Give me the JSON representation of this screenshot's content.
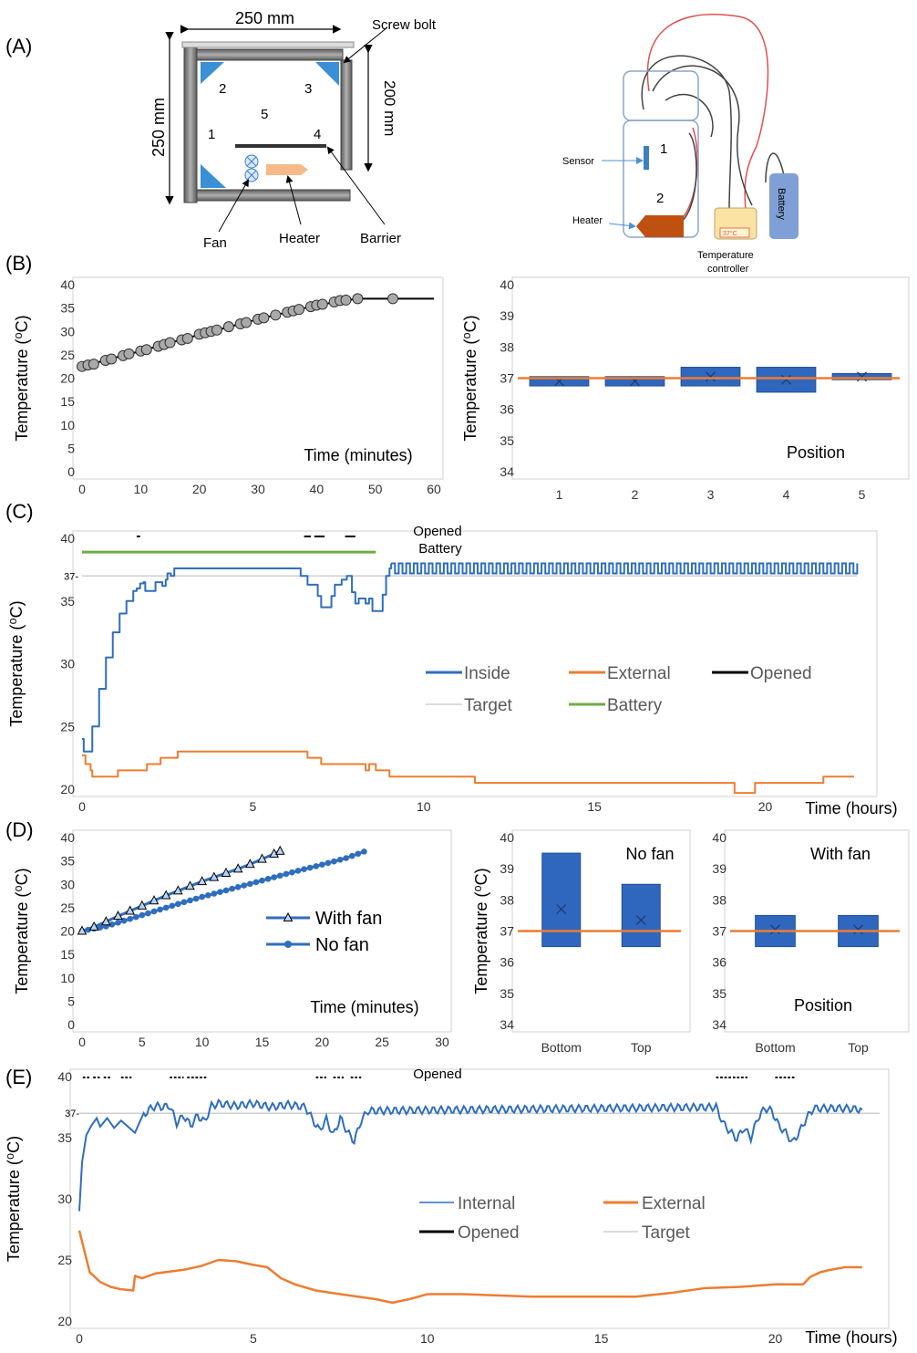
{
  "panels": {
    "a": "(A)",
    "b": "(B)",
    "c": "(C)",
    "d": "(D)",
    "e": "(E)"
  },
  "colors": {
    "blue": "#2f6ebd",
    "orange": "#ed7d31",
    "green": "#70ad47",
    "target": "#cfcfcf",
    "box": "#3067be",
    "marker": "#a9a9a9"
  },
  "diagram_a1": {
    "width_label": "250 mm",
    "height_label": "250 mm",
    "inner_height_label": "200 mm",
    "screw_bolt": "Screw bolt",
    "fan": "Fan",
    "heater": "Heater",
    "barrier": "Barrier",
    "positions": [
      "1",
      "2",
      "3",
      "4",
      "5"
    ]
  },
  "diagram_a2": {
    "sensor": "Sensor",
    "heater": "Heater",
    "controller_line1": "Temperature",
    "controller_line2": "controller",
    "battery": "Battery",
    "display": "37°C",
    "zone1": "1",
    "zone2": "2"
  },
  "chart_data": [
    {
      "id": "B-left",
      "type": "scatter",
      "xlabel": "Time (minutes)",
      "ylabel": "Temperature (⁰C)",
      "xlim": [
        0,
        60
      ],
      "ylim": [
        0,
        40
      ],
      "xticks": [
        0,
        10,
        20,
        30,
        40,
        50,
        60
      ],
      "yticks": [
        0,
        5,
        10,
        15,
        20,
        25,
        30,
        35,
        40
      ],
      "points": [
        [
          0,
          22.5
        ],
        [
          1,
          22.8
        ],
        [
          2,
          23
        ],
        [
          4,
          23.8
        ],
        [
          5,
          24.1
        ],
        [
          7,
          24.8
        ],
        [
          8,
          25.2
        ],
        [
          10,
          25.8
        ],
        [
          11,
          26.1
        ],
        [
          13,
          26.8
        ],
        [
          14,
          27.2
        ],
        [
          15,
          27.6
        ],
        [
          17,
          28.2
        ],
        [
          18,
          28.5
        ],
        [
          20,
          29.4
        ],
        [
          21,
          29.7
        ],
        [
          22,
          30
        ],
        [
          23,
          30.3
        ],
        [
          25,
          31
        ],
        [
          27,
          31.6
        ],
        [
          28,
          31.9
        ],
        [
          30,
          32.6
        ],
        [
          31,
          32.9
        ],
        [
          33,
          33.5
        ],
        [
          35,
          34.1
        ],
        [
          36,
          34.4
        ],
        [
          37,
          34.7
        ],
        [
          39,
          35.3
        ],
        [
          40,
          35.6
        ],
        [
          41,
          35.8
        ],
        [
          43,
          36.3
        ],
        [
          44,
          36.6
        ],
        [
          45,
          36.7
        ],
        [
          47,
          37
        ],
        [
          53,
          37
        ]
      ],
      "curve": [
        [
          0,
          22.5
        ],
        [
          10,
          25.8
        ],
        [
          20,
          29.3
        ],
        [
          30,
          32.6
        ],
        [
          40,
          35.6
        ],
        [
          47,
          37
        ],
        [
          60,
          37
        ]
      ]
    },
    {
      "id": "B-right",
      "type": "box",
      "xlabel": "Position",
      "ylabel": "Temperature (⁰C)",
      "ylim": [
        34,
        40
      ],
      "yticks": [
        34,
        35,
        36,
        37,
        38,
        39,
        40
      ],
      "categories": [
        "1",
        "2",
        "3",
        "4",
        "5"
      ],
      "boxes": [
        [
          36.75,
          37.05,
          36.9
        ],
        [
          36.75,
          37.05,
          36.9
        ],
        [
          36.75,
          37.35,
          37.05
        ],
        [
          36.55,
          37.35,
          36.95
        ],
        [
          36.95,
          37.15,
          37.05
        ]
      ],
      "target": 37
    },
    {
      "id": "C",
      "type": "line",
      "xlabel": "Time (hours)",
      "ylabel": "Temperature (⁰C)",
      "xlim": [
        0,
        23
      ],
      "ylim": [
        20,
        40
      ],
      "xticks": [
        0,
        5,
        10,
        15,
        20
      ],
      "yticks": [
        20,
        25,
        30,
        35,
        40
      ],
      "target_label": "37-",
      "target": 37,
      "annotation1": "Opened",
      "annotation2": "Battery",
      "battery": [
        [
          0,
          38.9
        ],
        [
          8.6,
          38.9
        ]
      ],
      "opened_segments": [
        [
          1.6,
          1.7
        ],
        [
          6.5,
          6.7
        ],
        [
          6.8,
          7.1
        ],
        [
          7.7,
          8.0
        ]
      ],
      "legend": [
        "Inside",
        "External",
        "Opened",
        "Target",
        "Battery"
      ],
      "inside": [
        [
          0,
          24
        ],
        [
          0.05,
          23
        ],
        [
          0.2,
          23
        ],
        [
          0.3,
          25
        ],
        [
          0.5,
          28
        ],
        [
          0.7,
          30.5
        ],
        [
          0.9,
          32.5
        ],
        [
          1.1,
          34
        ],
        [
          1.3,
          35
        ],
        [
          1.5,
          35.8
        ],
        [
          1.6,
          36
        ],
        [
          1.7,
          36.4
        ],
        [
          1.8,
          36.5
        ],
        [
          1.85,
          35.8
        ],
        [
          2.1,
          35.8
        ],
        [
          2.15,
          36.5
        ],
        [
          2.3,
          36.5
        ],
        [
          2.35,
          36.2
        ],
        [
          2.45,
          36.7
        ],
        [
          2.5,
          37.2
        ],
        [
          2.6,
          37
        ],
        [
          2.7,
          37.6
        ],
        [
          3,
          37.6
        ],
        [
          6.3,
          37.6
        ],
        [
          6.4,
          37
        ],
        [
          6.6,
          36.3
        ],
        [
          6.8,
          36.3
        ],
        [
          6.9,
          35.4
        ],
        [
          7,
          34.5
        ],
        [
          7.2,
          34.5
        ],
        [
          7.3,
          35.4
        ],
        [
          7.4,
          36.3
        ],
        [
          7.6,
          36.7
        ],
        [
          7.75,
          37
        ],
        [
          7.9,
          35.7
        ],
        [
          8,
          34.8
        ],
        [
          8.1,
          35.2
        ],
        [
          8.3,
          34.8
        ],
        [
          8.4,
          35.2
        ],
        [
          8.5,
          34.2
        ],
        [
          8.7,
          34.2
        ],
        [
          8.8,
          35.5
        ],
        [
          8.9,
          37
        ],
        [
          9,
          37.6
        ],
        [
          9.05,
          38
        ]
      ]
    },
    {
      "id": "D-left",
      "type": "line",
      "xlabel": "Time (minutes)",
      "ylabel": "Temperature (⁰C)",
      "xlim": [
        0,
        30
      ],
      "ylim": [
        0,
        40
      ],
      "xticks": [
        0,
        5,
        10,
        15,
        20,
        25,
        30
      ],
      "yticks": [
        0,
        5,
        10,
        15,
        20,
        25,
        30,
        35,
        40
      ],
      "series": [
        {
          "name": "With fan",
          "values": [
            [
              0,
              20
            ],
            [
              1,
              20.9
            ],
            [
              2,
              22
            ],
            [
              3,
              23.2
            ],
            [
              4,
              24.3
            ],
            [
              5,
              25.4
            ],
            [
              6,
              26.5
            ],
            [
              7,
              27.6
            ],
            [
              8,
              28.6
            ],
            [
              9,
              29.6
            ],
            [
              10,
              30.6
            ],
            [
              11,
              31.5
            ],
            [
              12,
              32.4
            ],
            [
              13,
              33.3
            ],
            [
              14,
              34.3
            ],
            [
              15,
              35.4
            ],
            [
              16,
              36.5
            ],
            [
              16.5,
              37.1
            ]
          ]
        },
        {
          "name": "No fan",
          "values": [
            [
              0,
              20
            ],
            [
              2,
              21
            ],
            [
              4,
              22.6
            ],
            [
              6,
              24.2
            ],
            [
              8,
              25.8
            ],
            [
              10,
              27.3
            ],
            [
              12,
              28.7
            ],
            [
              14,
              30.1
            ],
            [
              16,
              31.5
            ],
            [
              18,
              32.9
            ],
            [
              20,
              34.2
            ],
            [
              22,
              35.6
            ],
            [
              23.5,
              37
            ]
          ]
        }
      ]
    },
    {
      "id": "D-middle",
      "type": "box",
      "title": "No fan",
      "ylabel": "Temperature (⁰C)",
      "ylim": [
        34,
        40
      ],
      "yticks": [
        34,
        35,
        36,
        37,
        38,
        39,
        40
      ],
      "categories": [
        "Bottom",
        "Top"
      ],
      "boxes": [
        [
          36.5,
          39.5,
          37.7
        ],
        [
          36.5,
          38.5,
          37.35
        ]
      ],
      "target": 37
    },
    {
      "id": "D-right",
      "type": "box",
      "title": "With fan",
      "xlabel": "Position",
      "ylim": [
        34,
        40
      ],
      "yticks": [
        34,
        35,
        36,
        37,
        38,
        39,
        40
      ],
      "categories": [
        "Bottom",
        "Top"
      ],
      "boxes": [
        [
          36.5,
          37.5,
          37.05
        ],
        [
          36.5,
          37.5,
          37.05
        ]
      ],
      "target": 37
    },
    {
      "id": "E",
      "type": "line",
      "xlabel": "Time (hours)",
      "ylabel": "Temperature (⁰C)",
      "xlim": [
        0,
        23
      ],
      "ylim": [
        20,
        40
      ],
      "xticks": [
        0,
        5,
        10,
        15,
        20
      ],
      "yticks": [
        20,
        25,
        30,
        35,
        40
      ],
      "target_label": "37-",
      "target": 37,
      "annotation": "Opened",
      "opened_segments": [
        [
          0.1,
          0.3
        ],
        [
          0.4,
          0.6
        ],
        [
          0.7,
          0.9
        ],
        [
          1.2,
          1.5
        ],
        [
          2.6,
          3.0
        ],
        [
          3.1,
          3.7
        ],
        [
          6.8,
          7.1
        ],
        [
          7.3,
          7.6
        ],
        [
          7.8,
          8.1
        ],
        [
          18.3,
          19.2
        ],
        [
          20.0,
          20.6
        ]
      ],
      "legend": [
        "Internal",
        "External",
        "Opened",
        "Target"
      ],
      "internal": [
        [
          0,
          29
        ],
        [
          0.08,
          33
        ],
        [
          0.2,
          35.2
        ],
        [
          0.35,
          36
        ],
        [
          0.5,
          36.6
        ],
        [
          0.6,
          35.9
        ],
        [
          0.8,
          36.6
        ],
        [
          1,
          35.8
        ],
        [
          1.2,
          36.4
        ],
        [
          1.4,
          35.9
        ],
        [
          1.6,
          35.4
        ],
        [
          1.8,
          36.7
        ],
        [
          2,
          37.3
        ],
        [
          2.2,
          37.6
        ],
        [
          2.4,
          37.5
        ],
        [
          2.6,
          37.6
        ],
        [
          2.8,
          36.2
        ],
        [
          3,
          36.8
        ],
        [
          3.2,
          36
        ],
        [
          3.4,
          36.8
        ],
        [
          3.6,
          36.3
        ],
        [
          3.8,
          37.6
        ],
        [
          4,
          37.8
        ],
        [
          4.5,
          37.6
        ],
        [
          5,
          37.8
        ],
        [
          5.5,
          37.5
        ],
        [
          6,
          37.7
        ],
        [
          6.5,
          37.5
        ],
        [
          6.7,
          36.5
        ],
        [
          6.9,
          35.6
        ],
        [
          7.1,
          36.5
        ],
        [
          7.3,
          35.2
        ],
        [
          7.5,
          36.6
        ],
        [
          7.7,
          35.5
        ],
        [
          7.9,
          34.7
        ],
        [
          8.1,
          36.4
        ],
        [
          8.3,
          37.2
        ],
        [
          18.3,
          37.5
        ],
        [
          18.5,
          36.2
        ],
        [
          18.7,
          35.5
        ],
        [
          18.9,
          34.9
        ],
        [
          19.1,
          35.8
        ],
        [
          19.3,
          35
        ],
        [
          19.5,
          36.6
        ],
        [
          19.7,
          37.4
        ],
        [
          19.9,
          37.2
        ],
        [
          20.1,
          36
        ],
        [
          20.3,
          35.4
        ],
        [
          20.5,
          34.6
        ],
        [
          20.7,
          35.5
        ],
        [
          20.9,
          36.6
        ],
        [
          21.1,
          37.4
        ],
        [
          22,
          37.4
        ],
        [
          22.5,
          37.3
        ]
      ],
      "external": [
        [
          0,
          27.4
        ],
        [
          0.3,
          24
        ],
        [
          0.6,
          23.2
        ],
        [
          0.9,
          22.8
        ],
        [
          1.2,
          22.6
        ],
        [
          1.55,
          22.5
        ],
        [
          1.6,
          23.7
        ],
        [
          1.8,
          23.5
        ],
        [
          2.2,
          23.9
        ],
        [
          3,
          24.2
        ],
        [
          3.5,
          24.5
        ],
        [
          4,
          25
        ],
        [
          4.5,
          24.9
        ],
        [
          5,
          24.6
        ],
        [
          5.4,
          24.4
        ],
        [
          5.8,
          23.5
        ],
        [
          6.2,
          23
        ],
        [
          6.8,
          22.5
        ],
        [
          7.5,
          22.2
        ],
        [
          8.5,
          21.8
        ],
        [
          9,
          21.5
        ],
        [
          9.5,
          21.8
        ],
        [
          10,
          22.2
        ],
        [
          11,
          22.2
        ],
        [
          13,
          22
        ],
        [
          16,
          22
        ],
        [
          17,
          22.3
        ],
        [
          18,
          22.7
        ],
        [
          19,
          22.8
        ],
        [
          20,
          23
        ],
        [
          20.8,
          23
        ],
        [
          21,
          23.6
        ],
        [
          21.3,
          24
        ],
        [
          21.6,
          24.2
        ],
        [
          22,
          24.4
        ],
        [
          22.5,
          24.4
        ]
      ]
    }
  ],
  "fc_geom": {
    "B-left": [
      90,
      312,
      476,
      517
    ],
    "B-right": [
      572,
      312,
      987,
      517
    ],
    "C": [
      90,
      590,
      952,
      865
    ],
    "D-left": [
      90,
      918,
      485,
      1123
    ],
    "D-middle": [
      572,
      918,
      747,
      1123
    ],
    "D-right": [
      805,
      918,
      987,
      1123
    ],
    "E": [
      87,
      1180,
      965,
      1448
    ]
  }
}
